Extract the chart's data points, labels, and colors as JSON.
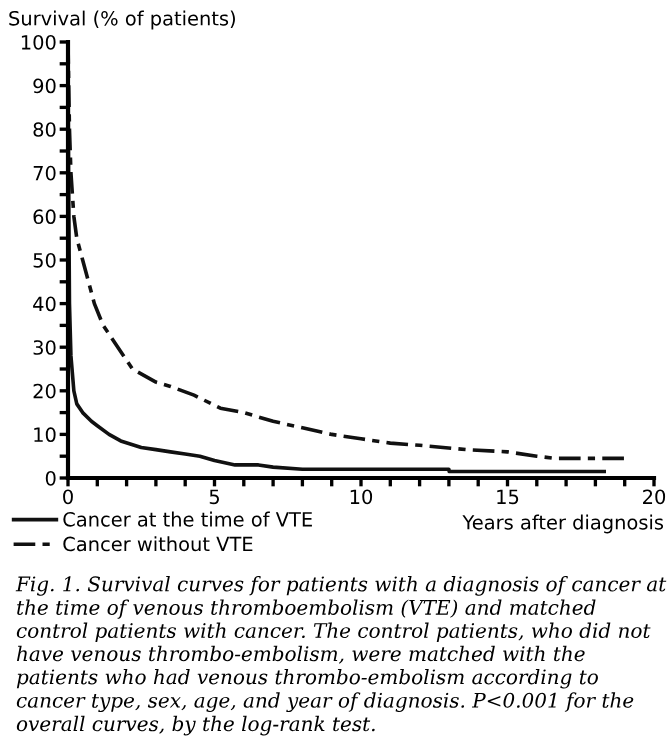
{
  "chart_data": {
    "type": "line",
    "ylabel": "Survival (% of patients)",
    "xlabel": "Years after diagnosis",
    "xlim": [
      0,
      20
    ],
    "ylim": [
      0,
      100
    ],
    "xticks": [
      0,
      {
        "value": 1,
        "label": null
      },
      {
        "value": 2,
        "label": null
      },
      {
        "value": 3,
        "label": null
      },
      {
        "value": 4,
        "label": null
      },
      5,
      {
        "value": 6,
        "label": null
      },
      {
        "value": 7,
        "label": null
      },
      {
        "value": 8,
        "label": null
      },
      {
        "value": 9,
        "label": null
      },
      10,
      {
        "value": 11,
        "label": null
      },
      {
        "value": 12,
        "label": null
      },
      {
        "value": 13,
        "label": null
      },
      {
        "value": 14,
        "label": null
      },
      15,
      {
        "value": 16,
        "label": null
      },
      {
        "value": 17,
        "label": null
      },
      {
        "value": 18,
        "label": null
      },
      {
        "value": 19,
        "label": null
      },
      20
    ],
    "yticks": [
      0,
      {
        "value": 5,
        "label": null
      },
      10,
      {
        "value": 15,
        "label": null
      },
      20,
      {
        "value": 25,
        "label": null
      },
      30,
      {
        "value": 35,
        "label": null
      },
      40,
      {
        "value": 45,
        "label": null
      },
      50,
      {
        "value": 55,
        "label": null
      },
      60,
      {
        "value": 65,
        "label": null
      },
      70,
      {
        "value": 75,
        "label": null
      },
      80,
      {
        "value": 85,
        "label": null
      },
      90,
      {
        "value": 95,
        "label": null
      },
      100
    ],
    "grid": false,
    "legend": "bottom left",
    "marker": "none",
    "series": [
      {
        "name": "Cancer at the time of VTE",
        "color": "#111111",
        "line_style": "solid",
        "x": [
          0,
          0.02,
          0.05,
          0.1,
          0.2,
          0.3,
          0.5,
          0.8,
          1,
          1.4,
          1.8,
          2.5,
          3,
          3.5,
          4,
          4.5,
          5,
          5.7,
          6.5,
          7,
          8,
          10,
          13,
          13.01,
          15,
          18.3
        ],
        "values": [
          100,
          70,
          40,
          28,
          20,
          17,
          15,
          13,
          12,
          10,
          8.5,
          7,
          6.5,
          6,
          5.5,
          5,
          4,
          3,
          3,
          2.5,
          2,
          2,
          2,
          1.5,
          1.5,
          1.5
        ]
      },
      {
        "name": "Cancer without VTE",
        "color": "#111111",
        "line_style": "dashed",
        "x": [
          0,
          0.05,
          0.1,
          0.2,
          0.3,
          0.5,
          0.7,
          0.9,
          1.2,
          1.5,
          1.9,
          2.2,
          3,
          3.5,
          4.3,
          5.2,
          6,
          7,
          8,
          9,
          10,
          11,
          12,
          13.6,
          15,
          16,
          16.6,
          17.5,
          19
        ],
        "values": [
          100,
          80,
          70,
          60,
          55,
          50,
          45,
          40,
          35,
          32,
          28,
          25,
          22,
          21,
          19,
          16,
          15,
          13,
          11.5,
          10,
          9,
          8,
          7.5,
          6.5,
          6,
          5,
          4.5,
          4.5,
          4.5
        ]
      }
    ],
    "annotations": [
      "Fig. 1. Survival curves for patients with a diagnosis of cancer at the time of venous thromboembolism (VTE) and matched control patients with cancer. The control patients, who did not have venous thrombo-embolism, were matched with the patients who had venous thrombo-embolism according to cancer type, sex, age, and year of diagnosis. P<0.001 for the overall curves, by the log-rank test."
    ]
  }
}
